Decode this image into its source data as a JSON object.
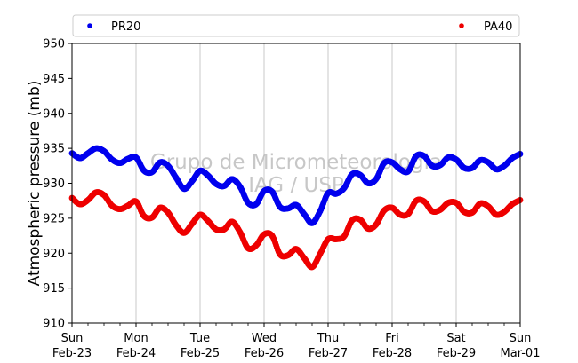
{
  "chart_data": {
    "type": "scatter",
    "title": "",
    "xlabel": "",
    "ylabel": "Atmospheric pressure (mb)",
    "ylim": [
      910,
      950
    ],
    "yticks": [
      910,
      915,
      920,
      925,
      930,
      935,
      940,
      945,
      950
    ],
    "xlim": [
      "2020-02-23 00:00",
      "2020-03-01 00:00"
    ],
    "xticks": [
      {
        "day": "Sun",
        "date": "Feb-23"
      },
      {
        "day": "Mon",
        "date": "Feb-24"
      },
      {
        "day": "Tue",
        "date": "Feb-25"
      },
      {
        "day": "Wed",
        "date": "Feb-26"
      },
      {
        "day": "Thu",
        "date": "Feb-27"
      },
      {
        "day": "Fri",
        "date": "Feb-28"
      },
      {
        "day": "Sat",
        "date": "Feb-29"
      },
      {
        "day": "Sun",
        "date": "Mar-01"
      }
    ],
    "grid": "vertical",
    "legend_placement": "top, above plot",
    "watermark": [
      "Grupo de Micrometeorologia",
      "IAG / USP"
    ],
    "series": [
      {
        "name": "PR20",
        "color": "#0000ee",
        "x": [
          "2020-02-23 00:00",
          "2020-02-23 03:00",
          "2020-02-23 06:00",
          "2020-02-23 09:00",
          "2020-02-23 12:00",
          "2020-02-23 15:00",
          "2020-02-23 18:00",
          "2020-02-23 21:00",
          "2020-02-24 00:00",
          "2020-02-24 03:00",
          "2020-02-24 06:00",
          "2020-02-24 09:00",
          "2020-02-24 12:00",
          "2020-02-24 15:00",
          "2020-02-24 18:00",
          "2020-02-24 21:00",
          "2020-02-25 00:00",
          "2020-02-25 03:00",
          "2020-02-25 06:00",
          "2020-02-25 09:00",
          "2020-02-25 12:00",
          "2020-02-25 15:00",
          "2020-02-25 18:00",
          "2020-02-25 21:00",
          "2020-02-26 00:00",
          "2020-02-26 03:00",
          "2020-02-26 06:00",
          "2020-02-26 09:00",
          "2020-02-26 12:00",
          "2020-02-26 15:00",
          "2020-02-26 18:00",
          "2020-02-26 21:00",
          "2020-02-27 00:00",
          "2020-02-27 03:00",
          "2020-02-27 06:00",
          "2020-02-27 09:00",
          "2020-02-27 12:00",
          "2020-02-27 15:00",
          "2020-02-27 18:00",
          "2020-02-27 21:00",
          "2020-02-28 00:00",
          "2020-02-28 03:00",
          "2020-02-28 06:00",
          "2020-02-28 09:00",
          "2020-02-28 12:00",
          "2020-02-28 15:00",
          "2020-02-28 18:00",
          "2020-02-28 21:00",
          "2020-02-29 00:00",
          "2020-02-29 03:00",
          "2020-02-29 06:00",
          "2020-02-29 09:00",
          "2020-02-29 12:00",
          "2020-02-29 15:00",
          "2020-02-29 18:00",
          "2020-02-29 21:00",
          "2020-03-01 00:00"
        ],
        "values": [
          934.3,
          933.6,
          934.3,
          935.0,
          934.6,
          933.4,
          932.9,
          933.5,
          933.7,
          931.8,
          931.6,
          933.0,
          932.5,
          930.8,
          929.2,
          930.3,
          931.8,
          931.1,
          929.9,
          929.6,
          930.6,
          929.5,
          927.2,
          927.0,
          928.9,
          928.8,
          926.6,
          926.4,
          926.9,
          925.6,
          924.3,
          926.0,
          928.6,
          928.5,
          929.3,
          931.3,
          931.2,
          930.0,
          930.6,
          932.9,
          933.0,
          932.0,
          931.7,
          933.9,
          933.9,
          932.5,
          932.6,
          933.7,
          933.4,
          932.2,
          932.2,
          933.3,
          933.0,
          932.0,
          932.5,
          933.6,
          934.2
        ]
      },
      {
        "name": "PA40",
        "color": "#ee0000",
        "x": [
          "2020-02-23 00:00",
          "2020-02-23 03:00",
          "2020-02-23 06:00",
          "2020-02-23 09:00",
          "2020-02-23 12:00",
          "2020-02-23 15:00",
          "2020-02-23 18:00",
          "2020-02-23 21:00",
          "2020-02-24 00:00",
          "2020-02-24 03:00",
          "2020-02-24 06:00",
          "2020-02-24 09:00",
          "2020-02-24 12:00",
          "2020-02-24 15:00",
          "2020-02-24 18:00",
          "2020-02-24 21:00",
          "2020-02-25 00:00",
          "2020-02-25 03:00",
          "2020-02-25 06:00",
          "2020-02-25 09:00",
          "2020-02-25 12:00",
          "2020-02-25 15:00",
          "2020-02-25 18:00",
          "2020-02-25 21:00",
          "2020-02-26 00:00",
          "2020-02-26 03:00",
          "2020-02-26 06:00",
          "2020-02-26 09:00",
          "2020-02-26 12:00",
          "2020-02-26 15:00",
          "2020-02-26 18:00",
          "2020-02-26 21:00",
          "2020-02-27 00:00",
          "2020-02-27 03:00",
          "2020-02-27 06:00",
          "2020-02-27 09:00",
          "2020-02-27 12:00",
          "2020-02-27 15:00",
          "2020-02-27 18:00",
          "2020-02-27 21:00",
          "2020-02-28 00:00",
          "2020-02-28 03:00",
          "2020-02-28 06:00",
          "2020-02-28 09:00",
          "2020-02-28 12:00",
          "2020-02-28 15:00",
          "2020-02-28 18:00",
          "2020-02-28 21:00",
          "2020-02-29 00:00",
          "2020-02-29 03:00",
          "2020-02-29 06:00",
          "2020-02-29 09:00",
          "2020-02-29 12:00",
          "2020-02-29 15:00",
          "2020-02-29 18:00",
          "2020-02-29 21:00",
          "2020-03-01 00:00"
        ],
        "values": [
          927.9,
          927.0,
          927.6,
          928.7,
          928.3,
          926.8,
          926.3,
          926.8,
          927.4,
          925.3,
          925.1,
          926.5,
          925.8,
          924.0,
          922.9,
          924.2,
          925.5,
          924.6,
          923.4,
          923.4,
          924.5,
          923.0,
          920.7,
          921.1,
          922.7,
          922.5,
          919.8,
          919.7,
          920.6,
          919.3,
          918.0,
          919.9,
          922.0,
          922.0,
          922.4,
          924.7,
          924.8,
          923.5,
          924.1,
          926.1,
          926.5,
          925.5,
          925.6,
          927.5,
          927.4,
          926.0,
          926.2,
          927.2,
          927.2,
          925.9,
          925.8,
          927.1,
          926.7,
          925.5,
          925.9,
          927.0,
          927.6
        ]
      }
    ]
  }
}
